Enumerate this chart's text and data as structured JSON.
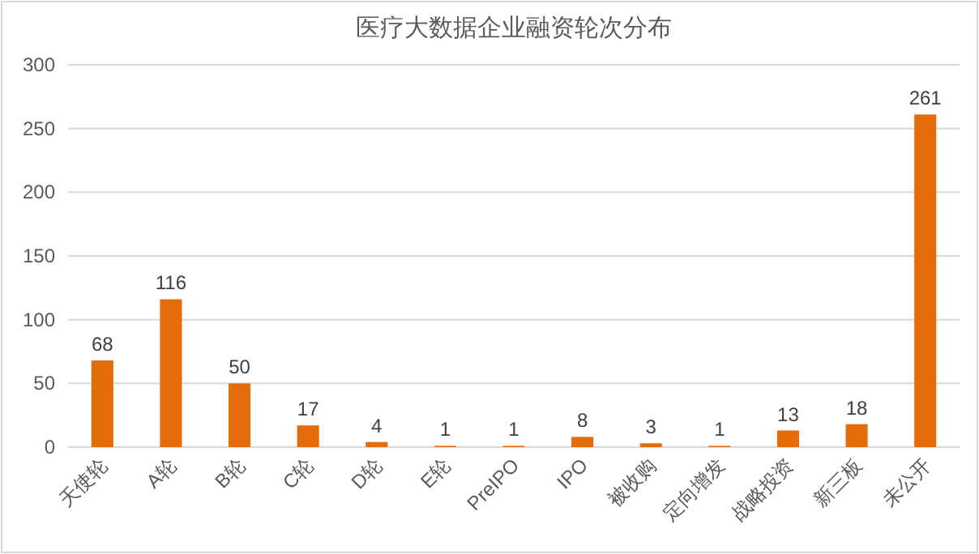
{
  "chart_data": {
    "type": "bar",
    "title": "医疗大数据企业融资轮次分布",
    "categories": [
      "天使轮",
      "A轮",
      "B轮",
      "C轮",
      "D轮",
      "E轮",
      "PreIPO",
      "IPO",
      "被收购",
      "定向增发",
      "战略投资",
      "新三板",
      "未公开"
    ],
    "values": [
      68,
      116,
      50,
      17,
      4,
      1,
      1,
      8,
      3,
      1,
      13,
      18,
      261
    ],
    "color": "#e46c0a",
    "ylim": [
      0,
      300
    ],
    "yticks": [
      0,
      50,
      100,
      150,
      200,
      250,
      300
    ],
    "grid": "y",
    "data_labels": true
  }
}
